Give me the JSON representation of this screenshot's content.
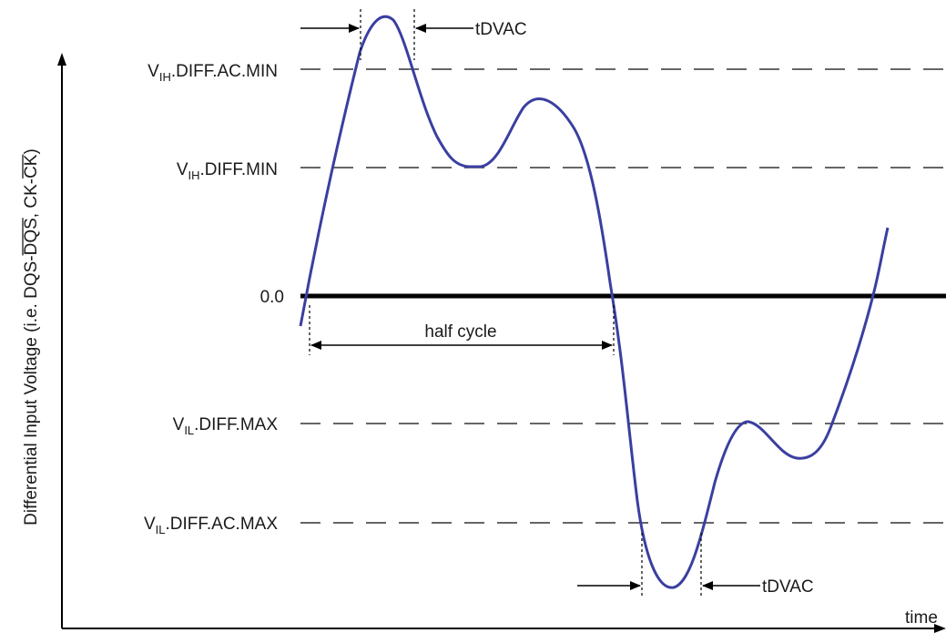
{
  "diagram": {
    "y_axis_label": {
      "prefix": "Differential Input Voltage (i.e. ",
      "dqs": "DQS-",
      "dqs_bar": "DQS",
      "sep": ", ",
      "ck": "CK-",
      "ck_bar": "CK",
      "suffix": ")"
    },
    "x_axis_label": "time",
    "zero_label": "0.0",
    "levels": [
      {
        "prefix": "V",
        "sub": "IH",
        "suffix": ".DIFF.AC.MIN"
      },
      {
        "prefix": "V",
        "sub": "IH",
        "suffix": ".DIFF.MIN"
      },
      {
        "prefix": "V",
        "sub": "IL",
        "suffix": ".DIFF.MAX"
      },
      {
        "prefix": "V",
        "sub": "IL",
        "suffix": ".DIFF.AC.MAX"
      }
    ],
    "annotations": {
      "tdvac_top": "tDVAC",
      "tdvac_bottom": "tDVAC",
      "half_cycle": "half cycle"
    },
    "colors": {
      "waveform": "#3a3fa0",
      "axis": "#000000",
      "dashed": "#333333"
    }
  }
}
